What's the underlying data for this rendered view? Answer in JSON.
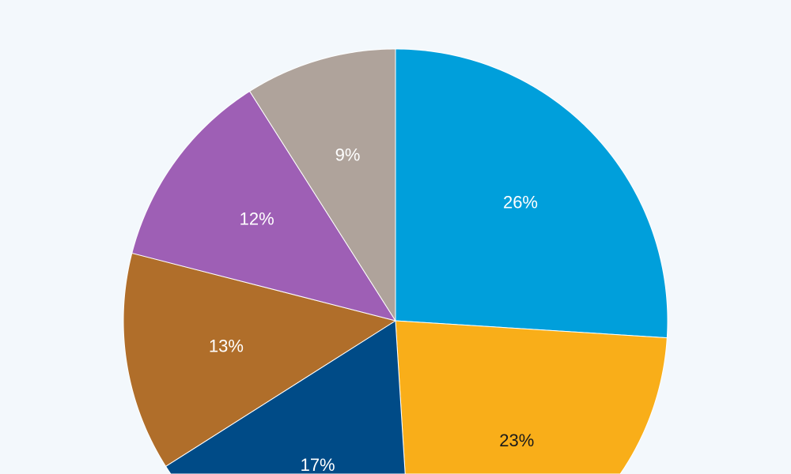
{
  "chart_data": {
    "type": "pie",
    "start": "top",
    "direction": "clockwise",
    "slices": [
      {
        "label": "26%",
        "value": 26,
        "color": "#009fdb",
        "text_color": "#ffffff"
      },
      {
        "label": "23%",
        "value": 23,
        "color": "#f9ae19",
        "text_color": "#1a1a1a"
      },
      {
        "label": "17%",
        "value": 17,
        "color": "#004b87",
        "text_color": "#ffffff"
      },
      {
        "label": "13%",
        "value": 13,
        "color": "#b06e2a",
        "text_color": "#ffffff"
      },
      {
        "label": "12%",
        "value": 12,
        "color": "#9e5fb5",
        "text_color": "#ffffff"
      },
      {
        "label": "9%",
        "value": 9,
        "color": "#afa39b",
        "text_color": "#ffffff"
      }
    ]
  }
}
